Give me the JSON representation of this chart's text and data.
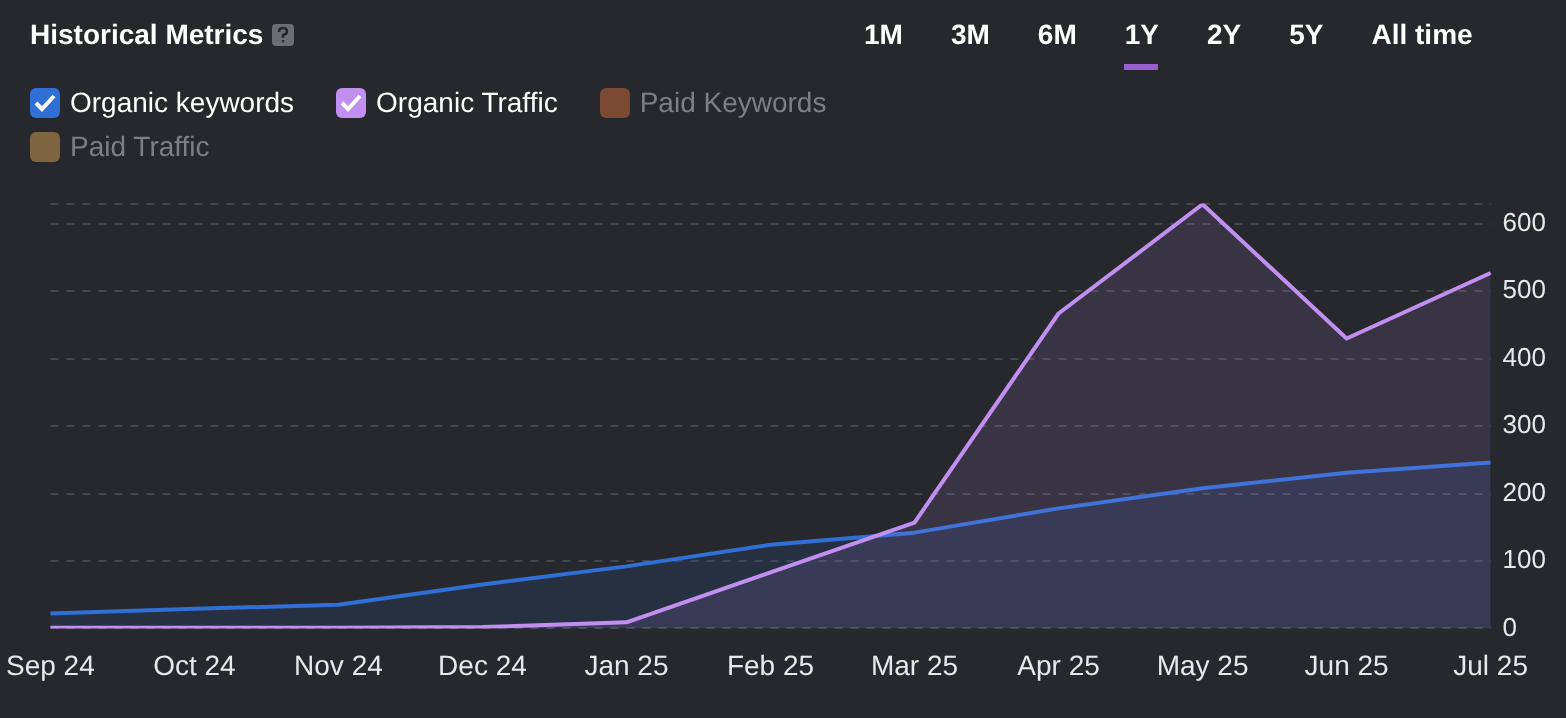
{
  "chart_data": {
    "type": "area",
    "title": "Historical Metrics",
    "annotations": [
      "1M",
      "3M",
      "6M",
      "1Y",
      "2Y",
      "5Y",
      "All time"
    ],
    "categories": [
      "Sep 24",
      "Oct 24",
      "Nov 24",
      "Dec 24",
      "Jan 25",
      "Feb 25",
      "Mar 25",
      "Apr 25",
      "May 25",
      "Jun 25",
      "Jul 25"
    ],
    "series": [
      {
        "name": "Organic keywords",
        "color": "#2f6fd6",
        "values": [
          22,
          29,
          35,
          65,
          92,
          124,
          142,
          178,
          208,
          231,
          246
        ]
      },
      {
        "name": "Organic Traffic",
        "color": "#c08ff0",
        "values": [
          1,
          1,
          1,
          2,
          9,
          83,
          157,
          467,
          629,
          430,
          527
        ]
      },
      {
        "name": "Paid Keywords",
        "color": "#7a4a32",
        "values": [
          null,
          null,
          null,
          null,
          null,
          null,
          null,
          null,
          null,
          null,
          null
        ]
      },
      {
        "name": "Paid Traffic",
        "color": "#7d6540",
        "values": [
          null,
          null,
          null,
          null,
          null,
          null,
          null,
          null,
          null,
          null,
          null
        ]
      }
    ],
    "ylim": [
      0,
      630
    ],
    "yticks": [
      0,
      100,
      200,
      300,
      400,
      500,
      600,
      {
        "value": 630,
        "label": null
      }
    ],
    "grid": "y",
    "legend": "top left",
    "marker": "none",
    "line_style": "solid"
  }
}
